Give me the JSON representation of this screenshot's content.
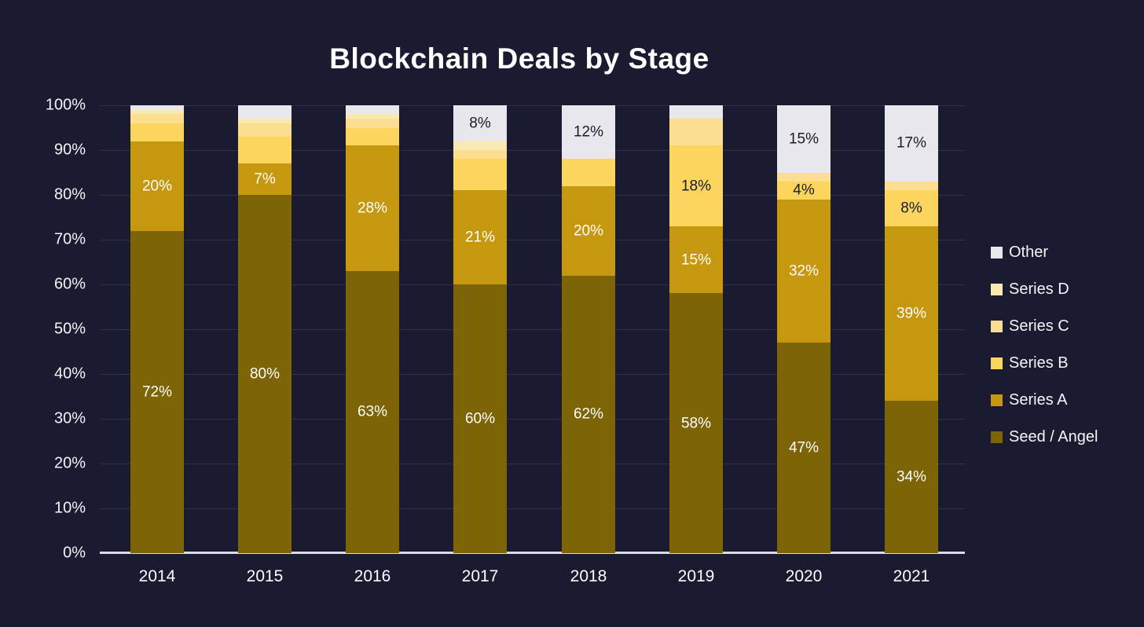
{
  "title": "Blockchain Deals by Stage",
  "colors": {
    "background": "#1A1A30",
    "gridline": "rgba(255,255,255,0.10)",
    "axis_line": "#DCDCE6",
    "text_light": "#F4F4F8",
    "text_dark": "#1B1B2E"
  },
  "chart_data": {
    "type": "stacked-bar-100pct",
    "title": "Blockchain Deals by Stage",
    "categories": [
      "2014",
      "2015",
      "2016",
      "2017",
      "2018",
      "2019",
      "2020",
      "2021"
    ],
    "y_ticks": [
      "100%",
      "90%",
      "80%",
      "70%",
      "60%",
      "50%",
      "40%",
      "30%",
      "20%",
      "10%",
      "0%"
    ],
    "ylim": [
      0,
      100
    ],
    "grid": "horizontal",
    "legend_position": "right",
    "legend_order_top_to_bottom": [
      "Other",
      "Series D",
      "Series C",
      "Series B",
      "Series A",
      "Seed / Angel"
    ],
    "series": [
      {
        "name": "Seed / Angel",
        "color": "#7D6406",
        "label_color": "#FFFFFF",
        "values": [
          72,
          80,
          63,
          60,
          62,
          58,
          47,
          34
        ],
        "labels": [
          "72%",
          "80%",
          "63%",
          "60%",
          "62%",
          "58%",
          "47%",
          "34%"
        ]
      },
      {
        "name": "Series A",
        "color": "#C6980F",
        "label_color": "#FFFFFF",
        "values": [
          20,
          7,
          28,
          21,
          20,
          15,
          32,
          39
        ],
        "labels": [
          "20%",
          "7%",
          "28%",
          "21%",
          "20%",
          "15%",
          "32%",
          "39%"
        ]
      },
      {
        "name": "Series B",
        "color": "#FBD55E",
        "label_color": "#1B1B2E",
        "values": [
          4,
          6,
          4,
          7,
          6,
          18,
          4,
          8
        ],
        "labels": [
          "",
          "",
          "",
          "",
          "",
          "18%",
          "4%",
          "8%"
        ]
      },
      {
        "name": "Series C",
        "color": "#FBDE8F",
        "label_color": "#1B1B2E",
        "values": [
          2,
          3,
          2,
          2,
          0,
          6,
          2,
          2
        ],
        "labels": [
          "",
          "",
          "",
          "",
          "",
          "",
          "",
          ""
        ]
      },
      {
        "name": "Series D",
        "color": "#F9E8AF",
        "label_color": "#1B1B2E",
        "values": [
          1,
          1,
          1,
          2,
          0,
          0,
          0,
          0
        ],
        "labels": [
          "",
          "",
          "",
          "",
          "",
          "",
          "",
          ""
        ]
      },
      {
        "name": "Other",
        "color": "#E8E7EB",
        "label_color": "#1B1B2E",
        "values": [
          1,
          3,
          2,
          8,
          12,
          3,
          15,
          17
        ],
        "labels": [
          "",
          "",
          "",
          "8%",
          "12%",
          "",
          "15%",
          "17%"
        ]
      }
    ]
  }
}
